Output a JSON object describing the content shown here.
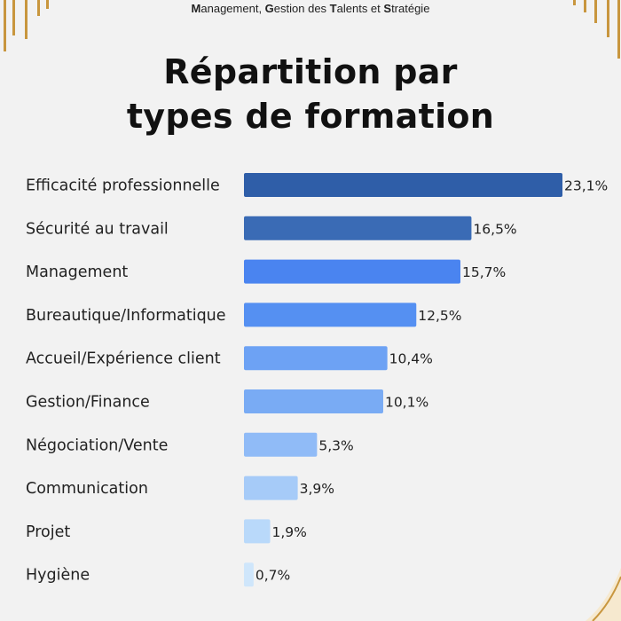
{
  "header": {
    "parts": [
      {
        "cap": "M",
        "rest": "anagement, "
      },
      {
        "cap": "G",
        "rest": "estion des "
      },
      {
        "cap": "T",
        "rest": "alents et "
      },
      {
        "cap": "S",
        "rest": "tratégie"
      }
    ]
  },
  "title": {
    "line1": "Répartition par",
    "line2": "types de formation"
  },
  "colors": {
    "background": "#f2f2f2",
    "gold": "#c8963e",
    "bars": [
      "#2f5ea8",
      "#3a6bb5",
      "#4a84f0",
      "#5590f2",
      "#6da2f4",
      "#79abf4",
      "#90bbf7",
      "#a6cbf8",
      "#b9d9fa",
      "#cfe6fb"
    ]
  },
  "chart_data": {
    "type": "bar",
    "orientation": "horizontal",
    "categories": [
      "Efficacité professionnelle",
      "Sécurité au travail",
      "Management",
      "Bureautique/Informatique",
      "Accueil/Expérience client",
      "Gestion/Finance",
      "Négociation/Vente",
      "Communication",
      "Projet",
      "Hygiène"
    ],
    "values": [
      23.1,
      16.5,
      15.7,
      12.5,
      10.4,
      10.1,
      5.3,
      3.9,
      1.9,
      0.7
    ],
    "value_labels": [
      "23,1%",
      "16,5%",
      "15,7%",
      "12,5%",
      "10,4%",
      "10,1%",
      "5,3%",
      "3,9%",
      "1,9%",
      "0,7%"
    ],
    "unit": "%",
    "grid": false,
    "legend": "none"
  }
}
